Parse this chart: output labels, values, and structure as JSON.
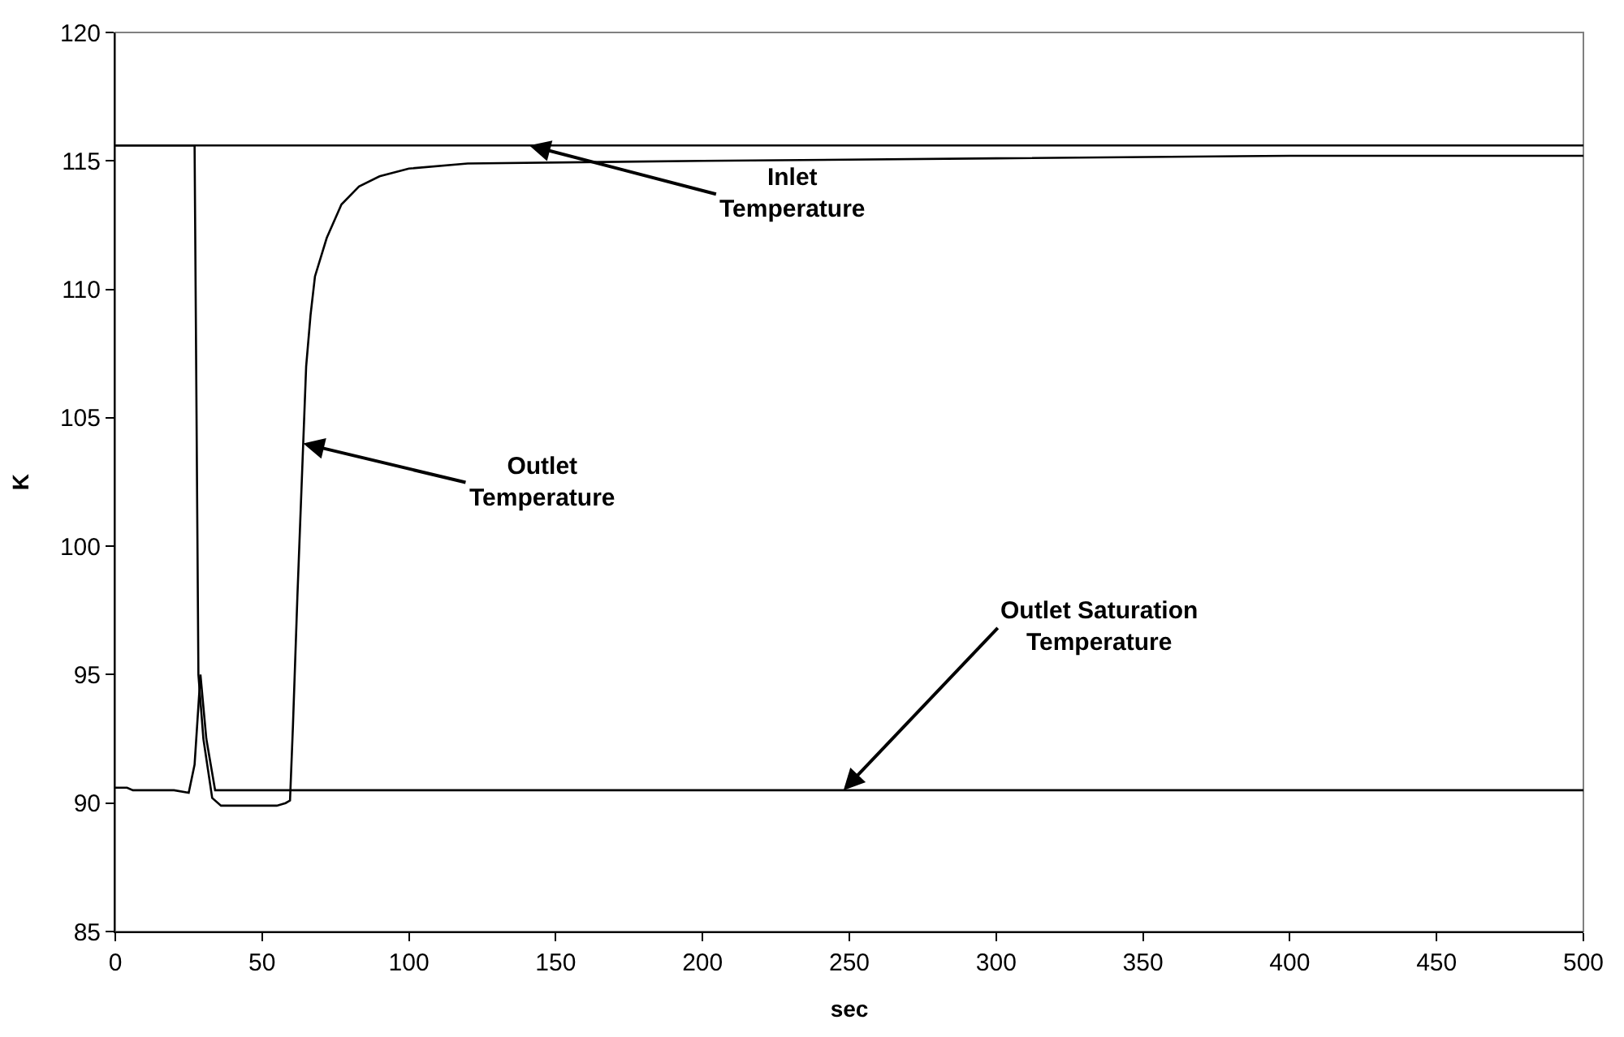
{
  "chart_data": {
    "type": "line",
    "xlabel": "sec",
    "ylabel": "K",
    "xlim": [
      0,
      500
    ],
    "xticks": [
      0,
      50,
      100,
      150,
      200,
      250,
      300,
      350,
      400,
      450,
      500
    ],
    "ylim": [
      85,
      120
    ],
    "yticks": [
      85,
      90,
      95,
      100,
      105,
      110,
      115,
      120
    ],
    "marker": "none",
    "line_style": "solid",
    "series": [
      {
        "color": "#000000",
        "x": [
          0,
          100,
          200,
          300,
          400,
          500
        ],
        "values": [
          115.6,
          115.6,
          115.6,
          115.6,
          115.6,
          115.6
        ]
      },
      {
        "color": "#000000",
        "x": [
          0,
          27,
          28.3,
          30,
          33,
          36,
          45,
          55,
          58,
          59.5,
          60.5,
          62,
          63,
          64,
          65,
          66.5,
          68,
          72,
          77,
          83,
          90,
          100,
          120,
          200,
          300,
          400,
          500
        ],
        "values": [
          115.6,
          115.6,
          95,
          92.5,
          90.2,
          89.9,
          89.9,
          89.9,
          90.0,
          90.1,
          93,
          98,
          101,
          104,
          107,
          109,
          110.5,
          112,
          113.3,
          114,
          114.4,
          114.7,
          114.9,
          115.0,
          115.1,
          115.2,
          115.2
        ]
      },
      {
        "color": "#000000",
        "x": [
          0,
          4,
          6,
          20,
          25,
          27,
          29,
          31,
          34,
          40,
          100,
          200,
          300,
          400,
          500
        ],
        "values": [
          90.6,
          90.6,
          90.5,
          90.5,
          90.4,
          91.5,
          95,
          92.5,
          90.5,
          90.5,
          90.5,
          90.5,
          90.5,
          90.5,
          90.5
        ]
      }
    ],
    "annotations": [
      {
        "text": "Inlet Temperature",
        "x": 141,
        "y": 115.6
      },
      {
        "text": "Outlet Temperature",
        "x": 64,
        "y": 104
      },
      {
        "text": "Outlet Saturation Temperature",
        "x": 248,
        "y": 90.5
      }
    ]
  }
}
